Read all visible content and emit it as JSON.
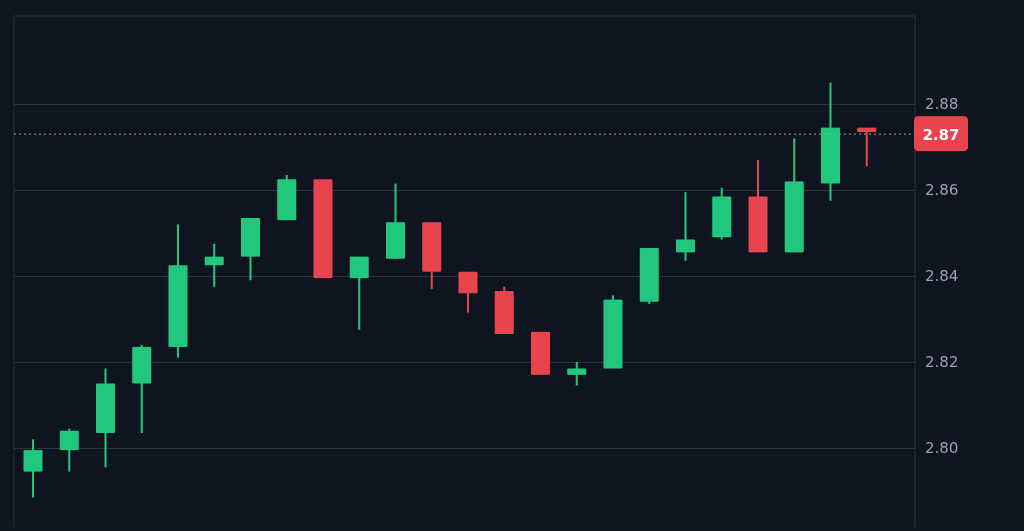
{
  "chart_data": {
    "type": "candlestick",
    "grid": true,
    "y_ticks": [
      2.8,
      2.82,
      2.84,
      2.86,
      2.88
    ],
    "y_tick_labels": [
      "2.80",
      "2.82",
      "2.84",
      "2.86",
      "2.88"
    ],
    "current_price": 2.873,
    "current_price_label": "2.87",
    "colors": {
      "background": "#0e1420",
      "up": "#22c77e",
      "down": "#e8444d",
      "grid": "#2a3342",
      "tick_text": "#9aa3b2",
      "price_badge": "#e8444d",
      "price_badge_text": "#ffffff",
      "price_line": "#9aa3b2"
    },
    "candles": [
      {
        "open": 2.7945,
        "high": 2.802,
        "low": 2.7885,
        "close": 2.7995
      },
      {
        "open": 2.7995,
        "high": 2.8045,
        "low": 2.7945,
        "close": 2.804
      },
      {
        "open": 2.8035,
        "high": 2.8185,
        "low": 2.7955,
        "close": 2.815
      },
      {
        "open": 2.815,
        "high": 2.824,
        "low": 2.8035,
        "close": 2.8235
      },
      {
        "open": 2.8235,
        "high": 2.852,
        "low": 2.821,
        "close": 2.8425
      },
      {
        "open": 2.8425,
        "high": 2.8475,
        "low": 2.8375,
        "close": 2.8445
      },
      {
        "open": 2.8445,
        "high": 2.8535,
        "low": 2.839,
        "close": 2.8535
      },
      {
        "open": 2.853,
        "high": 2.8635,
        "low": 2.853,
        "close": 2.8625
      },
      {
        "open": 2.8625,
        "high": 2.8625,
        "low": 2.8395,
        "close": 2.8395
      },
      {
        "open": 2.8395,
        "high": 2.8445,
        "low": 2.8275,
        "close": 2.8445
      },
      {
        "open": 2.844,
        "high": 2.8615,
        "low": 2.844,
        "close": 2.8525
      },
      {
        "open": 2.8525,
        "high": 2.8525,
        "low": 2.837,
        "close": 2.841
      },
      {
        "open": 2.841,
        "high": 2.841,
        "low": 2.8315,
        "close": 2.836
      },
      {
        "open": 2.8365,
        "high": 2.8375,
        "low": 2.8265,
        "close": 2.8265
      },
      {
        "open": 2.827,
        "high": 2.827,
        "low": 2.817,
        "close": 2.817
      },
      {
        "open": 2.817,
        "high": 2.82,
        "low": 2.8145,
        "close": 2.8185
      },
      {
        "open": 2.8185,
        "high": 2.8355,
        "low": 2.8185,
        "close": 2.8345
      },
      {
        "open": 2.834,
        "high": 2.8465,
        "low": 2.8335,
        "close": 2.8465
      },
      {
        "open": 2.8455,
        "high": 2.8595,
        "low": 2.8435,
        "close": 2.8485
      },
      {
        "open": 2.849,
        "high": 2.8605,
        "low": 2.8485,
        "close": 2.8585
      },
      {
        "open": 2.8585,
        "high": 2.867,
        "low": 2.8455,
        "close": 2.8455
      },
      {
        "open": 2.8455,
        "high": 2.872,
        "low": 2.8455,
        "close": 2.862
      },
      {
        "open": 2.8615,
        "high": 2.885,
        "low": 2.8575,
        "close": 2.8745
      },
      {
        "open": 2.8745,
        "high": 2.8745,
        "low": 2.8655,
        "close": 2.8735
      }
    ]
  }
}
